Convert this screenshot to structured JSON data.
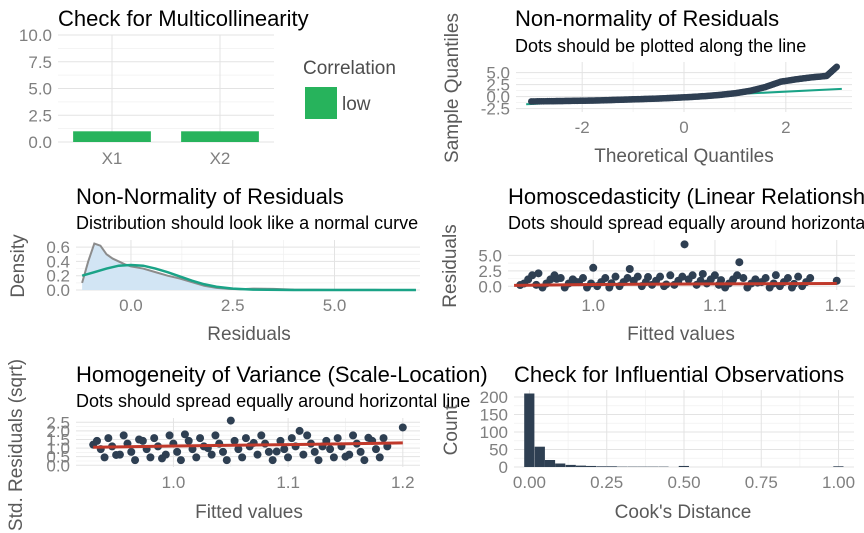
{
  "panels": {
    "multicollinearity": {
      "title": "Check for Multicollinearity",
      "legend_title": "Correlation",
      "legend_label": "low"
    },
    "qq": {
      "title": "Non-normality of Residuals",
      "subtitle": "Dots should be plotted along the line",
      "xlabel": "Theoretical Quantiles",
      "ylabel": "Sample Quantiles"
    },
    "density": {
      "title": "Non-Normality of Residuals",
      "subtitle": "Distribution should look like a normal curve",
      "xlabel": "Residuals",
      "ylabel": "Density"
    },
    "homoscedasticity": {
      "title": "Homoscedasticity (Linear Relationship)",
      "subtitle": "Dots should spread equally around horizontal line",
      "xlabel": "Fitted values",
      "ylabel": "Residuals"
    },
    "scale_location": {
      "title": "Homogeneity of Variance (Scale-Location)",
      "subtitle": "Dots should spread equally around horizontal line",
      "xlabel": "Fitted values",
      "ylabel": "Std. Residuals (sqrt)"
    },
    "influence": {
      "title": "Check for Influential Observations",
      "xlabel": "Cook's Distance",
      "ylabel": "Count"
    }
  },
  "colors": {
    "bar_green": "#27b35c",
    "point_navy": "#2e3f52",
    "line_teal": "#1aa387",
    "line_red": "#c0392b",
    "density_fill": "#d2e5f4",
    "density_line": "#8c8c8c"
  },
  "chart_data": [
    {
      "type": "bar",
      "categories": [
        "X1",
        "X2"
      ],
      "values": [
        1.0,
        1.0
      ],
      "ylim": [
        0,
        10
      ],
      "yticks": [
        "0.0",
        "2.5",
        "5.0",
        "7.5",
        "10.0"
      ],
      "series": [
        {
          "name": "low",
          "values": [
            1.0,
            1.0
          ]
        }
      ]
    },
    {
      "type": "scatter",
      "xlim": [
        -3.3,
        3.3
      ],
      "ylim": [
        -3.2,
        7.2
      ],
      "xticks": [
        -2,
        0,
        2
      ],
      "xtick_labels": [
        "-2",
        "0",
        "2"
      ],
      "yticks": [
        -2.5,
        0,
        2.5,
        5
      ],
      "ytick_labels": [
        "-2.5",
        "0.0",
        "2.5",
        "5.0"
      ],
      "reference_line": {
        "x": [
          -3.1,
          3.1
        ],
        "y": [
          -1.6,
          1.6
        ]
      },
      "points_x": [
        -3.0,
        -2.6,
        -2.3,
        -2.0,
        -1.7,
        -1.4,
        -1.1,
        -0.8,
        -0.5,
        -0.2,
        0.1,
        0.4,
        0.7,
        1.0,
        1.3,
        1.6,
        1.9,
        2.2,
        2.5,
        2.8,
        3.0
      ],
      "points_y": [
        -1.0,
        -0.95,
        -0.9,
        -0.85,
        -0.8,
        -0.7,
        -0.6,
        -0.5,
        -0.4,
        -0.25,
        -0.1,
        0.1,
        0.35,
        0.7,
        1.2,
        2.0,
        3.1,
        3.6,
        4.0,
        4.3,
        6.2
      ]
    },
    {
      "type": "area",
      "xlim": [
        -1.35,
        7.1
      ],
      "ylim": [
        0,
        0.7
      ],
      "xticks": [
        0,
        2.5,
        5.0
      ],
      "xtick_labels": [
        "0.0",
        "2.5",
        "5.0"
      ],
      "yticks": [
        0,
        0.2,
        0.4,
        0.6
      ],
      "ytick_labels": [
        "0.0",
        "0.2",
        "0.4",
        "0.6"
      ],
      "density_x": [
        -1.2,
        -1.05,
        -0.9,
        -0.75,
        -0.6,
        -0.45,
        -0.3,
        -0.15,
        0,
        0.3,
        0.6,
        0.9,
        1.2,
        1.5,
        1.8,
        2.1,
        2.4,
        2.7,
        3.0,
        3.5,
        4.0,
        5.0,
        6.0,
        7.0
      ],
      "density_y": [
        0.1,
        0.4,
        0.65,
        0.62,
        0.5,
        0.44,
        0.4,
        0.36,
        0.33,
        0.3,
        0.25,
        0.2,
        0.16,
        0.11,
        0.06,
        0.03,
        0.015,
        0.01,
        0.02,
        0.015,
        0.005,
        0.002,
        0.001,
        0.0
      ],
      "normal_x": [
        -1.2,
        -0.9,
        -0.6,
        -0.3,
        0,
        0.3,
        0.6,
        0.9,
        1.2,
        1.5,
        1.8,
        2.1,
        2.5,
        3.0,
        4.0,
        5.0,
        7.0
      ],
      "normal_y": [
        0.2,
        0.25,
        0.3,
        0.34,
        0.35,
        0.34,
        0.3,
        0.25,
        0.19,
        0.13,
        0.08,
        0.045,
        0.02,
        0.006,
        0.0,
        0.0,
        0.0
      ]
    },
    {
      "type": "scatter",
      "xlim": [
        0.93,
        1.215
      ],
      "ylim": [
        -0.6,
        7.5
      ],
      "xticks": [
        1.0,
        1.1,
        1.2
      ],
      "xtick_labels": [
        "1.0",
        "1.1",
        "1.2"
      ],
      "yticks": [
        0,
        2.5,
        5.0
      ],
      "ytick_labels": [
        "0.0",
        "2.5",
        "5.0"
      ],
      "points_x": [
        0.94,
        0.955,
        0.97,
        0.985,
        1.0,
        1.015,
        1.03,
        1.045,
        1.06,
        1.075,
        1.09,
        1.105,
        1.12,
        1.135,
        1.15,
        1.165,
        1.2
      ],
      "points_y": [
        0.2,
        2.1,
        1.2,
        0.8,
        3.0,
        0.5,
        2.8,
        1.5,
        0.3,
        6.8,
        2.0,
        1.0,
        3.9,
        0.6,
        1.8,
        0.4,
        0.9
      ],
      "smooth_x": [
        0.935,
        1.0,
        1.1,
        1.2
      ],
      "smooth_y": [
        0.15,
        0.3,
        0.4,
        0.45
      ]
    },
    {
      "type": "scatter",
      "xlim": [
        0.915,
        1.215
      ],
      "ylim": [
        -0.1,
        2.75
      ],
      "xticks": [
        1.0,
        1.1,
        1.2
      ],
      "xtick_labels": [
        "1.0",
        "1.1",
        "1.2"
      ],
      "yticks": [
        0,
        0.5,
        1.0,
        1.5,
        2.0,
        2.5
      ],
      "ytick_labels": [
        "0.0",
        "0.5",
        "1.0",
        "1.5",
        "2.0",
        "2.5"
      ],
      "points_x": [
        0.93,
        0.95,
        0.97,
        0.99,
        1.01,
        1.03,
        1.05,
        1.07,
        1.09,
        1.11,
        1.13,
        1.15,
        1.17,
        1.2
      ],
      "points_y": [
        1.2,
        0.6,
        1.5,
        0.4,
        1.8,
        1.0,
        2.6,
        1.3,
        0.8,
        2.0,
        1.1,
        0.5,
        1.6,
        2.2
      ],
      "smooth_x": [
        0.93,
        1.0,
        1.1,
        1.2
      ],
      "smooth_y": [
        1.05,
        1.12,
        1.2,
        1.3
      ]
    },
    {
      "type": "bar",
      "xlim": [
        -0.05,
        1.05
      ],
      "ylim": [
        0,
        220
      ],
      "xticks": [
        0,
        0.25,
        0.5,
        0.75,
        1.0
      ],
      "xtick_labels": [
        "0.00",
        "0.25",
        "0.50",
        "0.75",
        "1.00"
      ],
      "yticks": [
        0,
        50,
        100,
        150,
        200
      ],
      "ytick_labels": [
        "0",
        "50",
        "100",
        "150",
        "200"
      ],
      "bin_width": 0.033,
      "bin_starts": [
        -0.017,
        0.017,
        0.05,
        0.083,
        0.117,
        0.15,
        0.183,
        0.217,
        0.25,
        0.283,
        0.317,
        0.35,
        0.383,
        0.417,
        0.45,
        0.483,
        0.983
      ],
      "counts": [
        210,
        58,
        20,
        10,
        6,
        4,
        3,
        2,
        2,
        1,
        1,
        1,
        1,
        1,
        0,
        3,
        2
      ]
    }
  ]
}
